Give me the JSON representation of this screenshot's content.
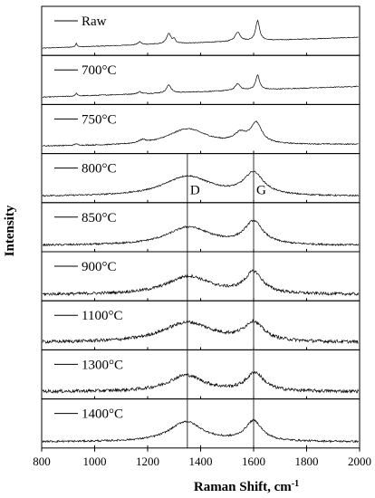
{
  "chart_data": {
    "type": "line",
    "title": "",
    "xlabel_main": "Raman Shift, cm",
    "xlabel_sup": "-1",
    "ylabel": "Intensity",
    "xlim": [
      800,
      2000
    ],
    "x_ticks": [
      "800",
      "1000",
      "1200",
      "1400",
      "1600",
      "1800",
      "2000"
    ],
    "grid": false,
    "stacked_panels": true,
    "reference_lines": [
      {
        "name": "D",
        "x": 1350
      },
      {
        "name": "G",
        "x": 1600
      }
    ],
    "series": [
      {
        "name": "Raw",
        "peaks": [
          {
            "x": 931,
            "y": 0.1,
            "w": 4
          },
          {
            "x": 1170,
            "y": 0.08,
            "w": 8
          },
          {
            "x": 1280,
            "y": 0.28,
            "w": 10
          },
          {
            "x": 1300,
            "y": 0.1,
            "w": 6
          },
          {
            "x": 1540,
            "y": 0.25,
            "w": 12
          },
          {
            "x": 1615,
            "y": 0.55,
            "w": 9
          }
        ],
        "baseline": [
          0.05,
          0.35
        ],
        "noise": 0.01
      },
      {
        "name": "700°C",
        "peaks": [
          {
            "x": 931,
            "y": 0.08,
            "w": 4
          },
          {
            "x": 1170,
            "y": 0.06,
            "w": 8
          },
          {
            "x": 1280,
            "y": 0.22,
            "w": 10
          },
          {
            "x": 1540,
            "y": 0.18,
            "w": 12
          },
          {
            "x": 1615,
            "y": 0.4,
            "w": 9
          }
        ],
        "baseline": [
          0.05,
          0.35
        ],
        "noise": 0.012
      },
      {
        "name": "750°C",
        "peaks": [
          {
            "x": 930,
            "y": 0.05,
            "w": 5
          },
          {
            "x": 1180,
            "y": 0.08,
            "w": 15
          },
          {
            "x": 1350,
            "y": 0.45,
            "w": 90
          },
          {
            "x": 1550,
            "y": 0.25,
            "w": 30
          },
          {
            "x": 1610,
            "y": 0.55,
            "w": 25
          }
        ],
        "baseline": [
          0.05,
          0.1
        ],
        "noise": 0.015
      },
      {
        "name": "800°C",
        "peaks": [
          {
            "x": 1350,
            "y": 0.55,
            "w": 110
          },
          {
            "x": 1600,
            "y": 0.6,
            "w": 45
          }
        ],
        "baseline": [
          0.02,
          0.02
        ],
        "noise": 0.02
      },
      {
        "name": "850°C",
        "peaks": [
          {
            "x": 1355,
            "y": 0.5,
            "w": 100
          },
          {
            "x": 1600,
            "y": 0.62,
            "w": 42
          }
        ],
        "baseline": [
          0.02,
          0.02
        ],
        "noise": 0.025
      },
      {
        "name": "900°C",
        "peaks": [
          {
            "x": 1355,
            "y": 0.5,
            "w": 100
          },
          {
            "x": 1600,
            "y": 0.58,
            "w": 40
          }
        ],
        "baseline": [
          0.02,
          0.02
        ],
        "noise": 0.04
      },
      {
        "name": "1100°C",
        "peaks": [
          {
            "x": 1350,
            "y": 0.55,
            "w": 115
          },
          {
            "x": 1600,
            "y": 0.5,
            "w": 45
          }
        ],
        "baseline": [
          0.05,
          0.05
        ],
        "noise": 0.045
      },
      {
        "name": "1300°C",
        "peaks": [
          {
            "x": 1345,
            "y": 0.45,
            "w": 80
          },
          {
            "x": 1605,
            "y": 0.5,
            "w": 40
          }
        ],
        "baseline": [
          0.05,
          0.05
        ],
        "noise": 0.045
      },
      {
        "name": "1400°C",
        "peaks": [
          {
            "x": 1345,
            "y": 0.55,
            "w": 75
          },
          {
            "x": 1600,
            "y": 0.55,
            "w": 38
          }
        ],
        "baseline": [
          0.02,
          0.02
        ],
        "noise": 0.025
      }
    ]
  }
}
